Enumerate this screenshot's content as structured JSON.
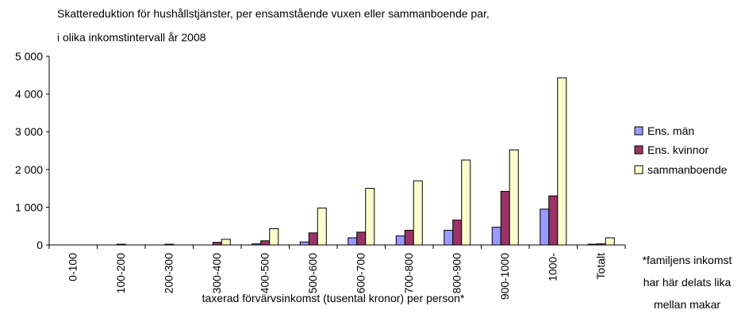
{
  "chart_data": {
    "type": "bar",
    "title": [
      "Skattereduktion för hushållstjänster, per ensamstående vuxen eller sammanboende par,",
      "i olika inkomstintervall år 2008"
    ],
    "x_label": "taxerad förvärvsinkomst (tusental kronor) per person*",
    "note": [
      "*familjens inkomst",
      "har här delats lika",
      "mellan makar"
    ],
    "categories": [
      "0-100",
      "100-200",
      "200-300",
      "300-400",
      "400-500",
      "500-600",
      "600-700",
      "700-800",
      "800-900",
      "900-1000",
      "1000-",
      "Totalt"
    ],
    "series": [
      {
        "name": "Ens. män",
        "color": "#9999ff",
        "values": [
          0,
          0,
          0,
          0,
          30,
          80,
          190,
          240,
          390,
          470,
          950,
          20
        ]
      },
      {
        "name": "Ens. kvinnor",
        "color": "#993366",
        "values": [
          0,
          20,
          20,
          70,
          110,
          320,
          340,
          390,
          660,
          1420,
          1300,
          30
        ]
      },
      {
        "name": "sammanboende",
        "color": "#ffffcc",
        "values": [
          0,
          0,
          0,
          150,
          430,
          980,
          1500,
          1700,
          2250,
          2520,
          4430,
          190
        ]
      }
    ],
    "ylim": [
      0,
      5000
    ],
    "yticks": [
      0,
      {
        "value": 1000,
        "label": "1 000"
      },
      {
        "value": 2000,
        "label": "2 000"
      },
      {
        "value": 3000,
        "label": "3 000"
      },
      {
        "value": 4000,
        "label": "4 000"
      },
      {
        "value": 5000,
        "label": "5 000"
      }
    ],
    "legend": "right"
  }
}
